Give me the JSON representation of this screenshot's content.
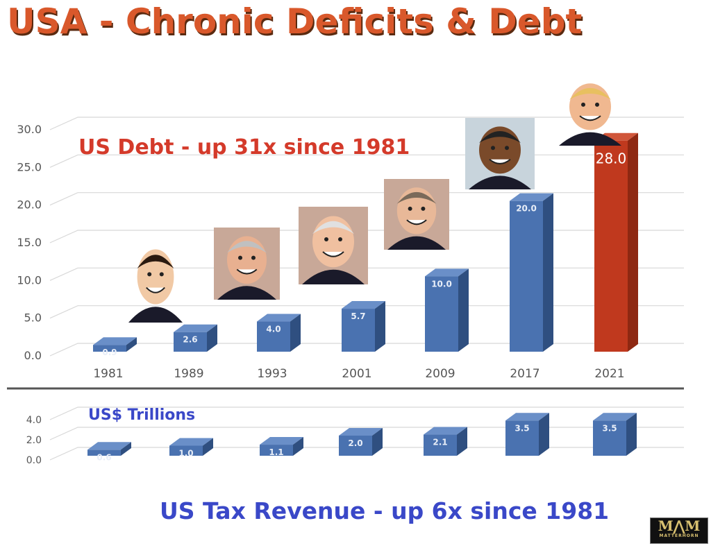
{
  "title": "USA - Chronic Deficits & Debt",
  "colors": {
    "title": "#d9582b",
    "bar": "#4a72b0",
    "bar_highlight": "#c0391e",
    "debt_annotation": "#d43a2a",
    "tax_annotation": "#3a48c8"
  },
  "logo": {
    "mark": "MAM",
    "text": "MATTERHORN"
  },
  "portraits": [
    "caricature-reagan",
    "caricature-bush-sr",
    "caricature-clinton",
    "caricature-bush-jr",
    "caricature-obama",
    "caricature-trump"
  ],
  "chart_data": [
    {
      "type": "bar",
      "annotation": "US Debt  -  up 31x since 1981",
      "categories": [
        "1981",
        "1989",
        "1993",
        "2001",
        "2009",
        "2017",
        "2021"
      ],
      "values": [
        0.9,
        2.6,
        4.0,
        5.7,
        10.0,
        20.0,
        28.0
      ],
      "labels": [
        "0.9",
        "2.6",
        "4.0",
        "5.7",
        "10.0",
        "20.0",
        "28.0"
      ],
      "highlight_index": 6,
      "yticks": [
        "0.0",
        "5.0",
        "10.0",
        "15.0",
        "20.0",
        "25.0",
        "30.0"
      ],
      "ylim": [
        0,
        30
      ],
      "grid": true
    },
    {
      "type": "bar",
      "unit_label": "US$ Trillions",
      "annotation": "US Tax Revenue  - up 6x since 1981",
      "values": [
        0.6,
        1.0,
        1.1,
        2.0,
        2.1,
        3.5,
        3.5
      ],
      "labels": [
        "0.6",
        "1.0",
        "1.1",
        "2.0",
        "2.1",
        "3.5",
        "3.5"
      ],
      "yticks": [
        "0.0",
        "2.0",
        "4.0"
      ],
      "ylim": [
        0,
        4
      ],
      "grid": true
    }
  ]
}
